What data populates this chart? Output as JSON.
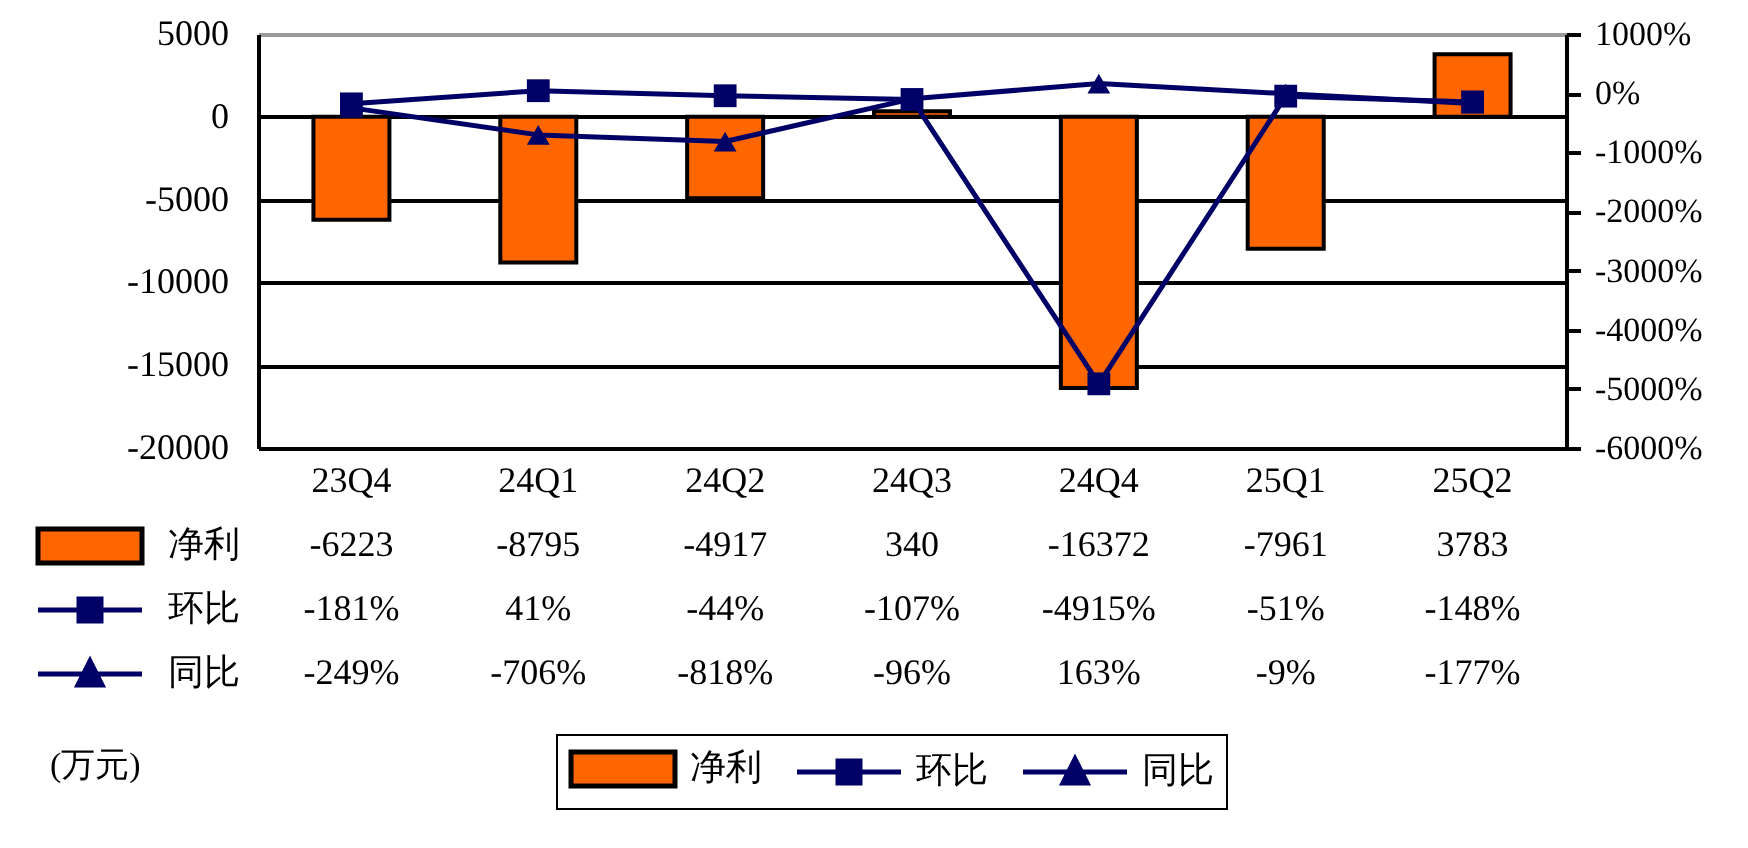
{
  "chart_data": {
    "type": "bar",
    "categories": [
      "23Q4",
      "24Q1",
      "24Q2",
      "24Q3",
      "24Q4",
      "25Q1",
      "25Q2"
    ],
    "series": [
      {
        "name": "净利",
        "color": "#ff6600",
        "values": [
          -6223,
          -8795,
          -4917,
          340,
          -16372,
          -7961,
          3783
        ],
        "value_labels": [
          "-6223",
          "-8795",
          "-4917",
          "340",
          "-16372",
          "-7961",
          "3783"
        ]
      },
      {
        "name": "环比",
        "type": "line",
        "axis": "y2",
        "marker": "square",
        "color": "#000066",
        "values": [
          -181,
          41,
          -44,
          -107,
          -4915,
          -51,
          -148
        ],
        "value_labels": [
          "-181%",
          "41%",
          "-44%",
          "-107%",
          "-4915%",
          "-51%",
          "-148%"
        ]
      },
      {
        "name": "同比",
        "type": "line",
        "axis": "y2",
        "marker": "triangle",
        "color": "#000066",
        "values": [
          -249,
          -706,
          -818,
          -96,
          163,
          -9,
          -177
        ],
        "value_labels": [
          "-249%",
          "-706%",
          "-818%",
          "-96%",
          "163%",
          "-9%",
          "-177%"
        ]
      }
    ],
    "ylim": [
      -20000,
      5000
    ],
    "yticks": [
      -20000,
      -15000,
      -10000,
      -5000,
      0,
      5000
    ],
    "y2lim": [
      -6000,
      1000
    ],
    "y2ticks": [
      {
        "value": -6000,
        "label": "-6000%"
      },
      {
        "value": -5000,
        "label": "-5000%"
      },
      {
        "value": -4000,
        "label": "-4000%"
      },
      {
        "value": -3000,
        "label": "-3000%"
      },
      {
        "value": -2000,
        "label": "-2000%"
      },
      {
        "value": -1000,
        "label": "-1000%"
      },
      {
        "value": 0,
        "label": "0%"
      },
      {
        "value": 1000,
        "label": "1000%"
      }
    ],
    "grid": "y",
    "legend": "bottom",
    "annotations": [
      "(万元)"
    ]
  }
}
